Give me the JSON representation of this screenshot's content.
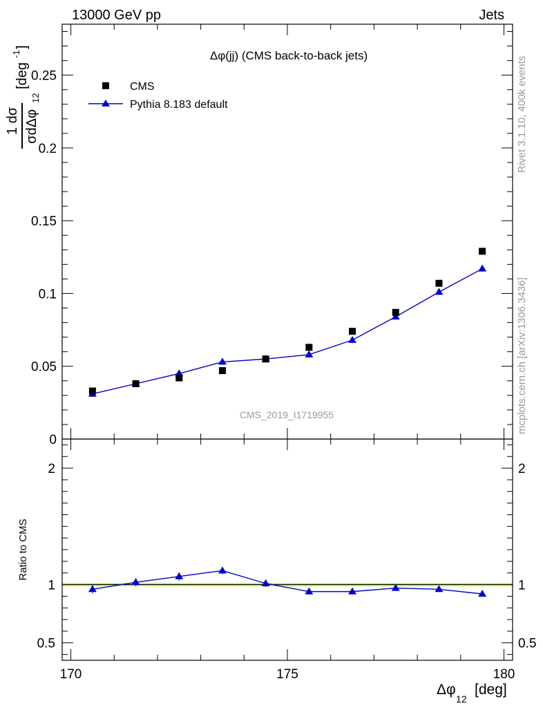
{
  "header": {
    "left_label": "13000 GeV pp",
    "right_label": "Jets"
  },
  "side_labels": {
    "rivet": "Rivet 3.1.10,  400k events",
    "mcplots": "mcplots.cern.ch [arXiv:1306.3436]"
  },
  "chart_data": [
    {
      "type": "scatter",
      "title": "Δφ(jj) (CMS back-to-back jets)",
      "watermark": "CMS_2019_I1719955",
      "ylabel": "1/σ dσ/dΔφ12 [deg^-1]",
      "ylim": [
        0,
        0.285
      ],
      "yticks": [
        0,
        0.05,
        0.1,
        0.15,
        0.2,
        0.25
      ],
      "ytick_labels": [
        "0",
        "0.05",
        "0.1",
        "0.15",
        "0.2",
        "0.25"
      ],
      "xlim": [
        169.8,
        180.2
      ],
      "legend_position": "top-left",
      "x": [
        170.5,
        171.5,
        172.5,
        173.5,
        174.5,
        175.5,
        176.5,
        177.5,
        178.5,
        179.5
      ],
      "series": [
        {
          "name": "CMS",
          "style": "markers",
          "marker": "square",
          "color": "#000000",
          "values": [
            0.033,
            0.038,
            0.042,
            0.047,
            0.055,
            0.063,
            0.074,
            0.087,
            0.107,
            0.129
          ]
        },
        {
          "name": "Pythia 8.183 default",
          "style": "line+markers",
          "marker": "triangle",
          "color": "#0000cc",
          "values": [
            0.031,
            0.038,
            0.045,
            0.053,
            0.055,
            0.058,
            0.068,
            0.084,
            0.101,
            0.117
          ],
          "errors": [
            0.002,
            0.002,
            0.002,
            0.002,
            0.002,
            0.002,
            0.002,
            0.002,
            0.002,
            0.002
          ]
        }
      ]
    },
    {
      "type": "line",
      "ylabel": "Ratio to CMS",
      "xlabel": "Δφ12 [deg]",
      "ylim": [
        0.35,
        2.25
      ],
      "yticks": [
        0.5,
        1,
        2
      ],
      "ytick_labels": [
        "0.5",
        "1",
        "2"
      ],
      "xlim": [
        169.8,
        180.2
      ],
      "xticks": [
        170,
        175,
        180
      ],
      "xtick_labels": [
        "170",
        "175",
        "180"
      ],
      "reference_line": 1,
      "band": [
        0.985,
        1.015
      ],
      "band_color": "#ccff66",
      "x": [
        170.5,
        171.5,
        172.5,
        173.5,
        174.5,
        175.5,
        176.5,
        177.5,
        178.5,
        179.5
      ],
      "series": [
        {
          "name": "Pythia 8.183 default",
          "color": "#0000cc",
          "values": [
            0.96,
            1.02,
            1.07,
            1.12,
            1.01,
            0.94,
            0.94,
            0.97,
            0.96,
            0.92
          ],
          "errors": [
            0.035,
            0.035,
            0.035,
            0.03,
            0.03,
            0.025,
            0.025,
            0.02,
            0.02,
            0.02
          ]
        }
      ]
    }
  ]
}
